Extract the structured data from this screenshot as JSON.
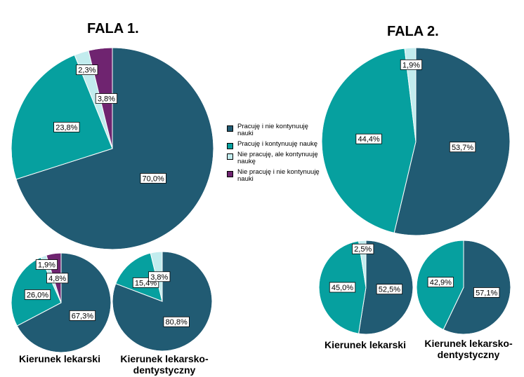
{
  "titles": {
    "wave1": "FALA 1.",
    "wave2": "FALA 2."
  },
  "legend": [
    {
      "label": "Pracuję i nie kontynuuję nauki",
      "color": "#215b73"
    },
    {
      "label": "Pracuję i kontynuuję naukę",
      "color": "#06a09f"
    },
    {
      "label": "Nie pracuję, ale kontynuuję naukę",
      "color": "#c2ecee"
    },
    {
      "label": "Nie pracuję i nie kontynuuję nauki",
      "color": "#6f2470"
    }
  ],
  "chart_data": [
    {
      "type": "pie",
      "group": "FALA 1.",
      "title": "",
      "categories": [
        "Pracuję i nie kontynuuję nauki",
        "Pracuję i kontynuuję naukę",
        "Nie pracuję, ale kontynuuję naukę",
        "Nie pracuję i nie kontynuuję nauki"
      ],
      "values": [
        70.0,
        23.8,
        2.3,
        3.8
      ],
      "labels": [
        "70,0%",
        "23,8%",
        "2,3%",
        "3,8%"
      ]
    },
    {
      "type": "pie",
      "group": "FALA 1.",
      "title": "Kierunek lekarski",
      "categories": [
        "Pracuję i nie kontynuuję nauki",
        "Pracuję i kontynuuję naukę",
        "Nie pracuję, ale kontynuuję naukę",
        "Nie pracuję i nie kontynuuję nauki"
      ],
      "values": [
        67.3,
        26.0,
        1.9,
        4.8
      ],
      "labels": [
        "67,3%",
        "26,0%",
        "1,9%",
        "4,8%"
      ]
    },
    {
      "type": "pie",
      "group": "FALA 1.",
      "title": "Kierunek lekarsko-dentystyczny",
      "categories": [
        "Pracuję i nie kontynuuję nauki",
        "Pracuję i kontynuuję naukę",
        "Nie pracuję, ale kontynuuję naukę"
      ],
      "values": [
        80.8,
        15.4,
        3.8
      ],
      "labels": [
        "80,8%",
        "15,4%",
        "3,8%"
      ]
    },
    {
      "type": "pie",
      "group": "FALA 2.",
      "title": "",
      "categories": [
        "Pracuję i nie kontynuuję nauki",
        "Pracuję i kontynuuję naukę",
        "Nie pracuję, ale kontynuuję naukę"
      ],
      "values": [
        53.7,
        44.4,
        1.9
      ],
      "labels": [
        "53,7%",
        "44,4%",
        "1,9%"
      ]
    },
    {
      "type": "pie",
      "group": "FALA 2.",
      "title": "Kierunek lekarski",
      "categories": [
        "Pracuję i nie kontynuuję nauki",
        "Pracuję i kontynuuję naukę",
        "Nie pracuję, ale kontynuuję naukę"
      ],
      "values": [
        52.5,
        45.0,
        2.5
      ],
      "labels": [
        "52,5%",
        "45,0%",
        "2,5%"
      ]
    },
    {
      "type": "pie",
      "group": "FALA 2.",
      "title": "Kierunek lekarsko-dentystyczny",
      "categories": [
        "Pracuję i nie kontynuuję nauki",
        "Pracuję i kontynuuję naukę"
      ],
      "values": [
        57.1,
        42.9
      ],
      "labels": [
        "57,1%",
        "42,9%"
      ]
    }
  ]
}
